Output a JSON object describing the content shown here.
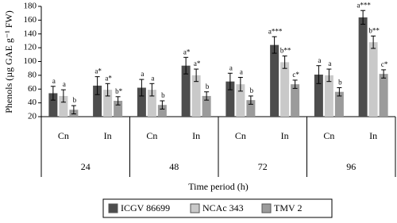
{
  "chart_data": {
    "type": "bar",
    "y_label": "Phenols (µg GAE g⁻¹ FW)",
    "x_label": "Time period (h)",
    "categories": [
      "Cn",
      "In",
      "Cn",
      "In",
      "Cn",
      "In",
      "Cn",
      "In"
    ],
    "groups": [
      "24",
      "48",
      "72",
      "96"
    ],
    "ylim": [
      20,
      180
    ],
    "yticks": [
      20,
      40,
      60,
      80,
      100,
      120,
      140,
      160,
      180
    ],
    "series": [
      {
        "name": "ICGV 86699",
        "color": "#4d4d4d",
        "values": [
          54,
          65,
          62,
          94,
          71,
          124,
          81,
          164
        ],
        "errors": [
          10,
          13,
          12,
          12,
          12,
          12,
          13,
          10
        ],
        "letters": [
          "a",
          "a*",
          "a",
          "a*",
          "a",
          "a***",
          "a",
          "a***"
        ]
      },
      {
        "name": "NCAc 343",
        "color": "#c9c9c9",
        "values": [
          50,
          59,
          59,
          80,
          67,
          99,
          80,
          128
        ],
        "errors": [
          9,
          9,
          9,
          9,
          10,
          9,
          9,
          9
        ],
        "letters": [
          "a",
          "a*",
          "a",
          "a*",
          "a",
          "b**",
          "a",
          "b**"
        ]
      },
      {
        "name": "TMV 2",
        "color": "#9b9b9b",
        "values": [
          30,
          43,
          37,
          50,
          44,
          67,
          56,
          82
        ],
        "errors": [
          6,
          6,
          6,
          6,
          6,
          6,
          6,
          6
        ],
        "letters": [
          "b",
          "b*",
          "b",
          "b",
          "b",
          "c*",
          "b",
          "c*"
        ]
      }
    ]
  }
}
